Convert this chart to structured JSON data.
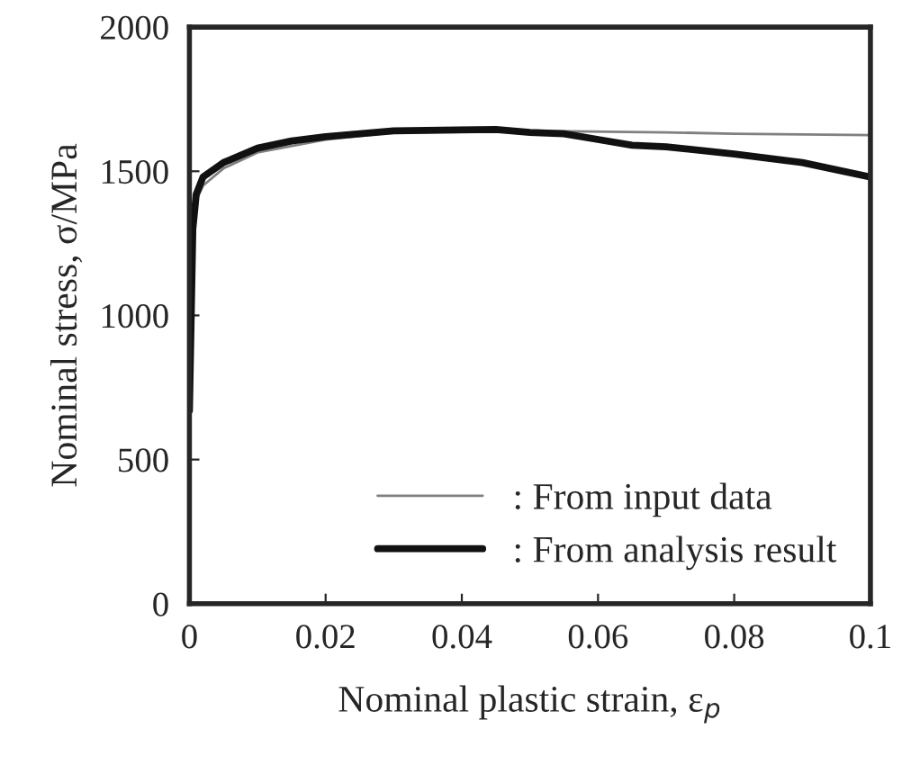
{
  "chart_data": {
    "type": "line",
    "xlabel": "Nominal plastic strain, ε$_{p}$",
    "ylabel": "Nominal stress, σ/MPa",
    "xlim": [
      0,
      0.1
    ],
    "ylim": [
      0,
      2000
    ],
    "xticks": [
      0,
      0.02,
      0.04,
      0.06,
      0.08,
      0.1
    ],
    "yticks": [
      0,
      500,
      1000,
      1500,
      2000
    ],
    "grid": false,
    "legend": "bottom right",
    "line_style": "solid",
    "series": [
      {
        "name": ": From input data",
        "color": "#808080",
        "x": [
          0,
          0.001,
          0.002,
          0.005,
          0.01,
          0.02,
          0.03,
          0.05,
          0.07,
          0.08,
          0.1
        ],
        "values": [
          1300,
          1400,
          1450,
          1510,
          1565,
          1610,
          1635,
          1640,
          1635,
          1630,
          1625
        ]
      },
      {
        "name": ": From analysis result",
        "color": "#111111",
        "x": [
          0,
          0.0005,
          0.001,
          0.002,
          0.005,
          0.01,
          0.015,
          0.02,
          0.03,
          0.045,
          0.05,
          0.055,
          0.06,
          0.065,
          0.07,
          0.08,
          0.09,
          0.1
        ],
        "values": [
          670,
          1300,
          1420,
          1480,
          1530,
          1580,
          1605,
          1620,
          1640,
          1645,
          1635,
          1630,
          1610,
          1590,
          1585,
          1560,
          1530,
          1480
        ]
      }
    ]
  }
}
